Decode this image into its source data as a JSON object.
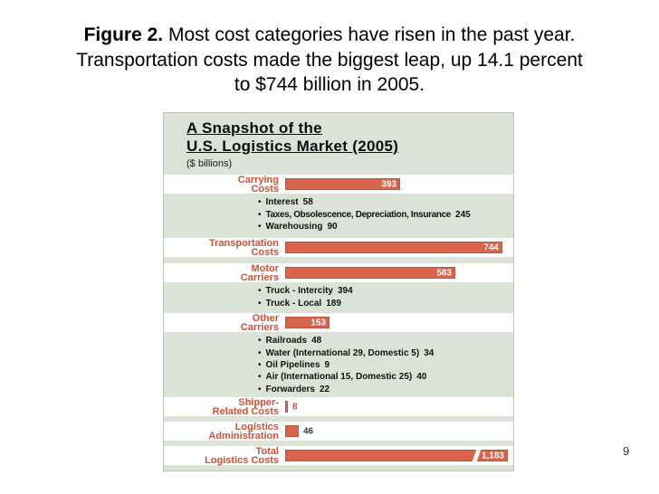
{
  "slide": {
    "title_prefix": "Figure 2.",
    "title_line1_rest": " Most cost categories have risen in the past year.",
    "title_line2": "Transportation costs made the biggest leap, up 14.1 percent",
    "title_line3": "to $744 billion in 2005.",
    "page_number": "9"
  },
  "chart": {
    "title_line1": "A Snapshot of the",
    "title_line2": "U.S. Logistics Market (2005)",
    "units_label": "($ billions)",
    "icons": {
      "bullet": "•"
    },
    "colors": {
      "chart_background": "#dbe3d7",
      "bar": "#d8644c",
      "category_label": "#cf5038",
      "bar_value_text": "#ffffff",
      "row_stripe": "#ffffff"
    },
    "rows": [
      {
        "label1": "Carrying",
        "label2": "Costs",
        "value": 393,
        "display": "393",
        "subitems": [
          {
            "label": "Interest",
            "value": "58"
          },
          {
            "label": "Taxes, Obsolescence, Depreciation, Insurance",
            "value": "245"
          },
          {
            "label": "Warehousing",
            "value": "90"
          }
        ]
      },
      {
        "label1": "Transportation",
        "label2": "Costs",
        "value": 744,
        "display": "744"
      },
      {
        "label1": "Motor",
        "label2": "Carriers",
        "value": 583,
        "display": "583",
        "subitems": [
          {
            "label": "Truck - Intercity",
            "value": "394"
          },
          {
            "label": "Truck - Local",
            "value": "189"
          }
        ]
      },
      {
        "label1": "Other",
        "label2": "Carriers",
        "value": 153,
        "display": "153",
        "subitems": [
          {
            "label": "Railroads",
            "value": "48"
          },
          {
            "label": "Water (International 29, Domestic 5)",
            "value": "34"
          },
          {
            "label": "Oil Pipelines",
            "value": "9"
          },
          {
            "label": "Air (International 15, Domestic 25)",
            "value": "40"
          },
          {
            "label": "Forwarders",
            "value": "22"
          }
        ]
      },
      {
        "label1": "Shipper-",
        "label2": "Related Costs",
        "value": 8,
        "display": "8",
        "value_color": "#cf5038"
      },
      {
        "label1": "Logistics",
        "label2": "Administration",
        "value": 46,
        "display": "46",
        "value_color": "#3a3a3a"
      },
      {
        "label1": "Total",
        "label2": "Logistics Costs",
        "value": 1183,
        "display": "1,183",
        "axis_break": true
      }
    ]
  },
  "chart_data": {
    "type": "bar",
    "orientation": "horizontal",
    "title": "A Snapshot of the U.S. Logistics Market (2005)",
    "units": "$ billions",
    "categories": [
      "Carrying Costs",
      "Transportation Costs",
      "Motor Carriers",
      "Other Carriers",
      "Shipper-Related Costs",
      "Logistics Administration",
      "Total Logistics Costs"
    ],
    "values": [
      393,
      744,
      583,
      153,
      8,
      46,
      1183
    ],
    "breakdowns": {
      "Carrying Costs": [
        {
          "label": "Interest",
          "value": 58
        },
        {
          "label": "Taxes, Obsolescence, Depreciation, Insurance",
          "value": 245
        },
        {
          "label": "Warehousing",
          "value": 90
        }
      ],
      "Motor Carriers": [
        {
          "label": "Truck - Intercity",
          "value": 394
        },
        {
          "label": "Truck - Local",
          "value": 189
        }
      ],
      "Other Carriers": [
        {
          "label": "Railroads",
          "value": 48
        },
        {
          "label": "Water (International 29, Domestic 5)",
          "value": 34
        },
        {
          "label": "Oil Pipelines",
          "value": 9
        },
        {
          "label": "Air (International 15, Domestic 25)",
          "value": 40
        },
        {
          "label": "Forwarders",
          "value": 22
        }
      ]
    },
    "notes": "Total Logistics Costs bar drawn with an axis break; grid off; category labels in red at left; values printed on/after bars."
  }
}
